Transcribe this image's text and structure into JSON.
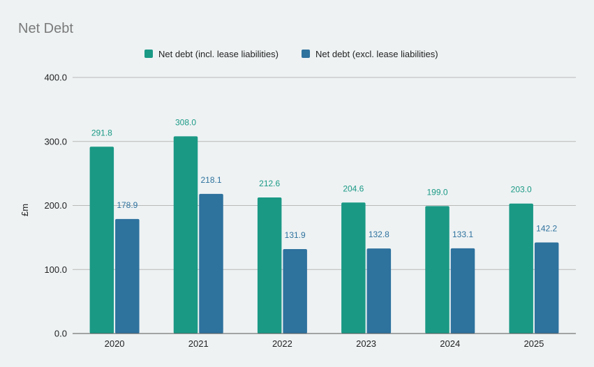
{
  "chart_data": {
    "type": "bar",
    "title": "Net Debt",
    "ylabel": "£m",
    "xlabel": "",
    "categories": [
      "2020",
      "2021",
      "2022",
      "2023",
      "2024",
      "2025"
    ],
    "series": [
      {
        "name": "Net debt (incl. lease liabilities)",
        "color": "#1a9985",
        "values": [
          291.8,
          308.0,
          212.6,
          204.6,
          199.0,
          203.0
        ],
        "labels": [
          "291.8",
          "308.0",
          "212.6",
          "204.6",
          "199.0",
          "203.0"
        ]
      },
      {
        "name": "Net debt (excl. lease liabilities)",
        "color": "#2e729e",
        "values": [
          178.9,
          218.1,
          131.9,
          132.8,
          133.1,
          142.2
        ],
        "labels": [
          "178.9",
          "218.1",
          "131.9",
          "132.8",
          "133.1",
          "142.2"
        ]
      }
    ],
    "ylim": [
      0,
      400
    ],
    "yticks": [
      0,
      100,
      200,
      300,
      400
    ],
    "ytick_labels": [
      "0.0",
      "100.0",
      "200.0",
      "300.0",
      "400.0"
    ],
    "grid": true,
    "legend_position": "top"
  }
}
